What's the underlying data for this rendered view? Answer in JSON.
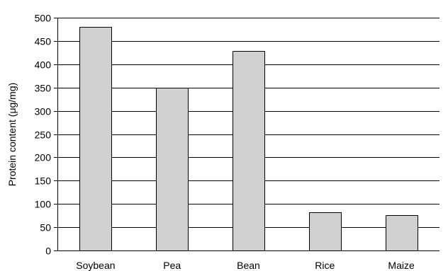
{
  "chart_data": {
    "type": "bar",
    "title": "",
    "xlabel": "",
    "ylabel": "Protein content (μg/mg)",
    "categories": [
      "Soybean",
      "Pea",
      "Bean",
      "Rice",
      "Maize"
    ],
    "values": [
      480,
      350,
      428,
      82,
      76
    ],
    "ylim": [
      0,
      500
    ],
    "yticks": [
      0,
      50,
      100,
      150,
      200,
      250,
      300,
      350,
      400,
      450,
      500
    ],
    "grid": true,
    "legend": "none",
    "colors": {
      "bar_fill": "#d0d0d0",
      "bar_stroke": "#000000",
      "grid": "#000000",
      "axis": "#000000"
    }
  }
}
